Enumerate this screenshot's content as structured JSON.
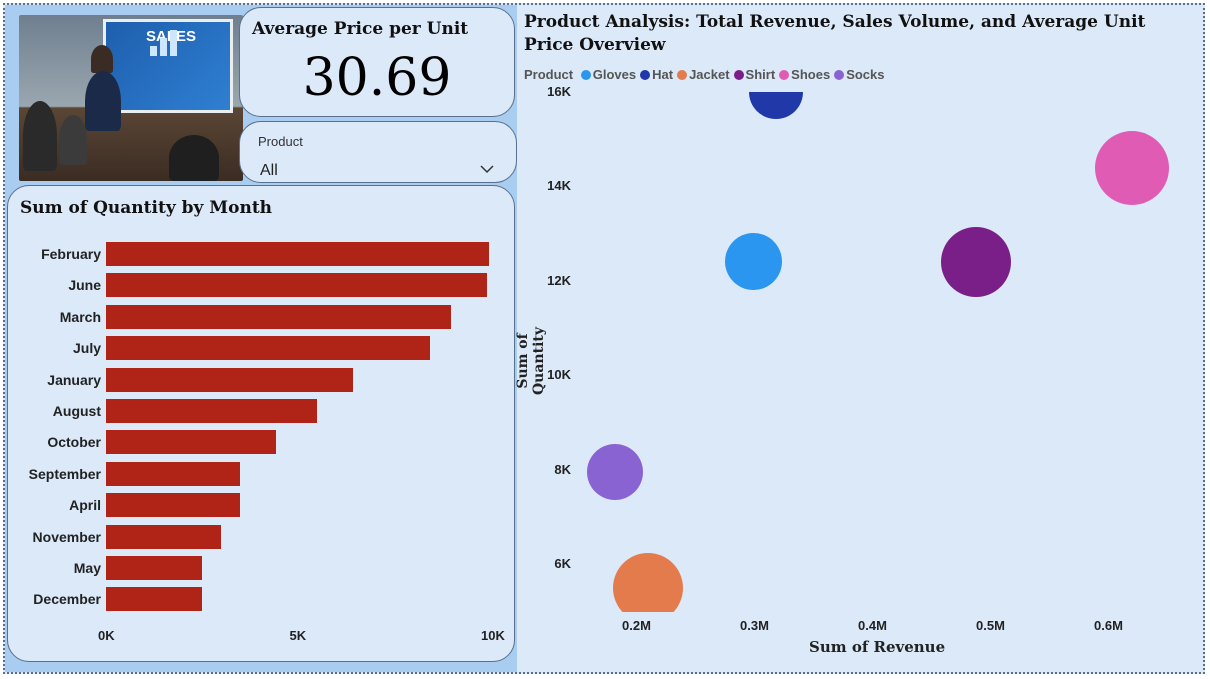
{
  "kpi": {
    "title": "Average Price per Unit",
    "value": "30.69"
  },
  "image": {
    "screen_text": "SALES"
  },
  "slicer": {
    "label": "Product",
    "value": "All"
  },
  "bar_chart_title": "Sum of Quantity by Month",
  "scatter_title": "Product Analysis: Total Revenue, Sales Volume, and Average Unit Price Overview",
  "legend_title": "Product",
  "chart_data": [
    {
      "type": "bar",
      "orientation": "horizontal",
      "title": "Sum of Quantity by Month",
      "categories": [
        "February",
        "June",
        "March",
        "July",
        "January",
        "August",
        "October",
        "September",
        "April",
        "November",
        "May",
        "December"
      ],
      "values": [
        10000,
        9950,
        9000,
        8450,
        6450,
        5500,
        4450,
        3500,
        3500,
        3000,
        2500,
        2500
      ],
      "xlim": [
        0,
        10000
      ],
      "xticks": [
        "0K",
        "5K",
        "10K"
      ],
      "bar_color": "#b02418",
      "grid": false
    },
    {
      "type": "scatter",
      "title": "Product Analysis: Total Revenue, Sales Volume, and Average Unit Price Overview",
      "xlabel": "Sum of Revenue",
      "ylabel": "Sum of Quantity",
      "xticks": [
        "0.2M",
        "0.3M",
        "0.4M",
        "0.5M",
        "0.6M"
      ],
      "yticks": [
        "16K",
        "14K",
        "12K",
        "10K",
        "8K",
        "6K"
      ],
      "xlim": [
        0.11,
        0.7
      ],
      "ylim": [
        4950,
        16200
      ],
      "legend_position": "top-left",
      "grid": false,
      "series": [
        {
          "name": "Gloves",
          "x": 0.297,
          "y": 12400,
          "size": 57,
          "color": "#2b96f0"
        },
        {
          "name": "Hat",
          "x": 0.316,
          "y": 16000,
          "size": 54,
          "color": "#2138a8"
        },
        {
          "name": "Jacket",
          "x": 0.208,
          "y": 5500,
          "size": 70,
          "color": "#e47b4c"
        },
        {
          "name": "Shirt",
          "x": 0.486,
          "y": 12400,
          "size": 70,
          "color": "#7b1f88"
        },
        {
          "name": "Shoes",
          "x": 0.618,
          "y": 14400,
          "size": 74,
          "color": "#e05cb4"
        },
        {
          "name": "Socks",
          "x": 0.18,
          "y": 7950,
          "size": 56,
          "color": "#8a63d2"
        }
      ]
    }
  ]
}
